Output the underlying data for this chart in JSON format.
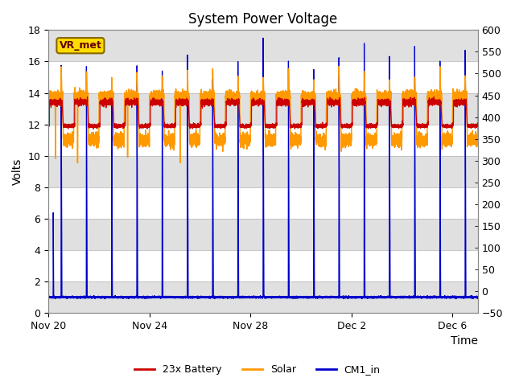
{
  "title": "System Power Voltage",
  "xlabel": "Time",
  "ylabel_left": "Volts",
  "ylim_left": [
    0,
    18
  ],
  "ylim_right": [
    -50,
    600
  ],
  "xtick_labels": [
    "Nov 20",
    "Nov 24",
    "Nov 28",
    "Dec 2",
    "Dec 6"
  ],
  "xtick_positions": [
    0,
    4,
    8,
    12,
    16
  ],
  "legend_labels": [
    "23x Battery",
    "Solar",
    "CM1_in"
  ],
  "line_colors": [
    "#cc0000",
    "#ff9900",
    "#0000cc"
  ],
  "bg_color": "#ffffff",
  "band_color": "#e0e0e0",
  "title_fontsize": 12,
  "label_fontsize": 10,
  "tick_fontsize": 9,
  "vr_met_label": "VR_met",
  "vr_met_facecolor": "#ffdd00",
  "vr_met_edgecolor": "#886600",
  "vr_met_textcolor": "#660000",
  "day_hours": 14,
  "night_hours": 10,
  "total_days": 17,
  "points_per_day": 500,
  "solar_day_val": 13.8,
  "solar_night_val": 11.0,
  "battery_base": 12.0,
  "battery_charge": 13.4,
  "cm1_base": 1.0,
  "cm1_peak_min": 15.5,
  "cm1_peak_max": 17.5
}
